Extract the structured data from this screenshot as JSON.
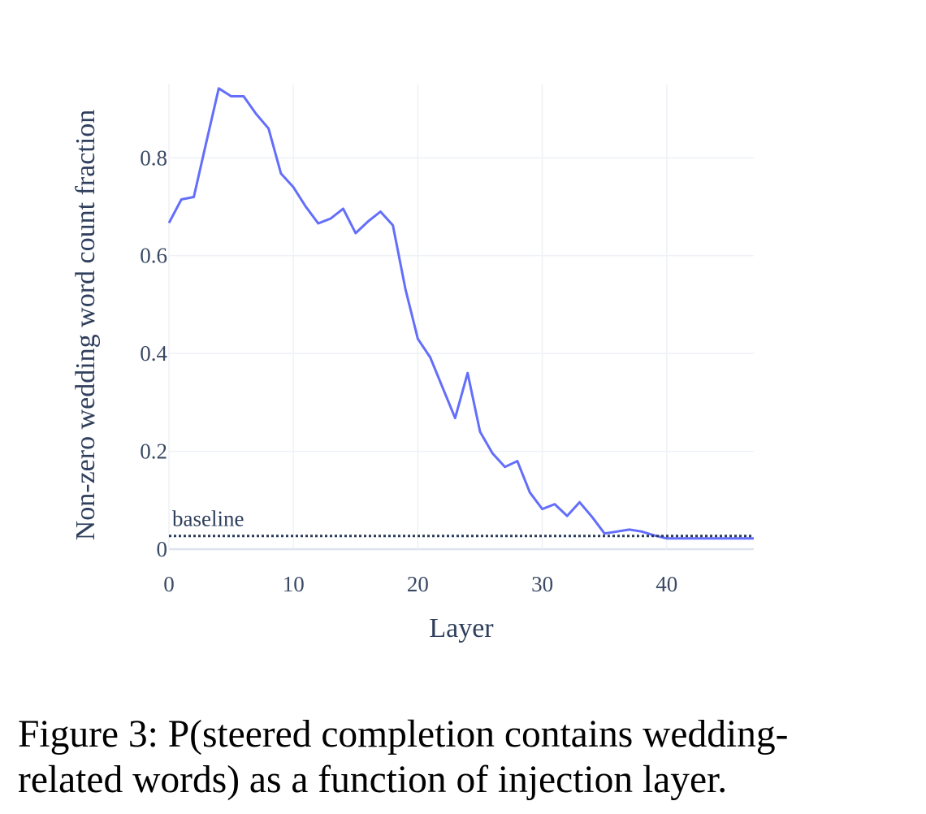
{
  "chart_data": {
    "type": "line",
    "xlabel": "Layer",
    "ylabel": "Non-zero wedding word count fraction",
    "xlim": [
      0,
      47
    ],
    "ylim": [
      0,
      0.95
    ],
    "x_ticks": [
      0,
      10,
      20,
      30,
      40
    ],
    "x_tick_labels": [
      "0",
      "10",
      "20",
      "30",
      "40"
    ],
    "y_ticks": [
      0,
      0.2,
      0.4,
      0.6,
      0.8
    ],
    "y_tick_labels": [
      "0",
      "0.2",
      "0.4",
      "0.6",
      "0.8"
    ],
    "grid": true,
    "series": [
      {
        "style": "solid",
        "color": "#636efa",
        "x": [
          0,
          1,
          2,
          3,
          4,
          5,
          6,
          7,
          8,
          9,
          10,
          11,
          12,
          13,
          14,
          15,
          16,
          17,
          18,
          19,
          20,
          21,
          22,
          23,
          24,
          25,
          26,
          27,
          28,
          29,
          30,
          31,
          32,
          33,
          34,
          35,
          36,
          37,
          38,
          39,
          40,
          41,
          42,
          43,
          44,
          45,
          46,
          47
        ],
        "values": [
          0.667,
          0.715,
          0.72,
          0.832,
          0.942,
          0.926,
          0.926,
          0.89,
          0.86,
          0.768,
          0.74,
          0.7,
          0.666,
          0.676,
          0.696,
          0.646,
          0.67,
          0.69,
          0.662,
          0.532,
          0.43,
          0.392,
          0.33,
          0.268,
          0.36,
          0.24,
          0.196,
          0.168,
          0.18,
          0.116,
          0.082,
          0.092,
          0.068,
          0.096,
          0.066,
          0.032,
          0.036,
          0.04,
          0.036,
          0.028,
          0.022,
          0.022,
          0.022,
          0.022,
          0.022,
          0.022,
          0.022,
          0.022
        ]
      },
      {
        "style": "dotted",
        "color": "#2a3a5a",
        "x": [
          0,
          47
        ],
        "values": [
          0.027,
          0.027
        ]
      }
    ],
    "annotations": [
      {
        "text": "baseline",
        "x": 0,
        "y": 0.027
      }
    ]
  },
  "caption": {
    "line1": "Figure 3: P(steered completion contains wedding-",
    "line2": "related words) as a function of injection layer."
  }
}
